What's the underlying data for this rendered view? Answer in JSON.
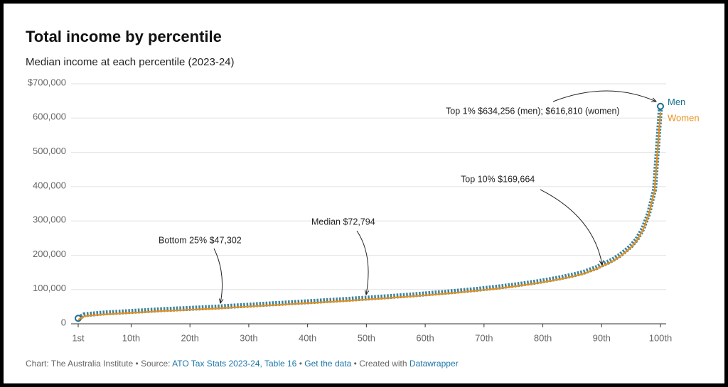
{
  "chart_data": {
    "type": "line",
    "title": "Total income by percentile",
    "subtitle": "Median income at each percentile (2023-24)",
    "x": [
      1,
      2,
      3,
      4,
      5,
      6,
      7,
      8,
      9,
      10,
      11,
      12,
      13,
      14,
      15,
      16,
      17,
      18,
      19,
      20,
      21,
      22,
      23,
      24,
      25,
      26,
      27,
      28,
      29,
      30,
      31,
      32,
      33,
      34,
      35,
      36,
      37,
      38,
      39,
      40,
      41,
      42,
      43,
      44,
      45,
      46,
      47,
      48,
      49,
      50,
      51,
      52,
      53,
      54,
      55,
      56,
      57,
      58,
      59,
      60,
      61,
      62,
      63,
      64,
      65,
      66,
      67,
      68,
      69,
      70,
      71,
      72,
      73,
      74,
      75,
      76,
      77,
      78,
      79,
      80,
      81,
      82,
      83,
      84,
      85,
      86,
      87,
      88,
      89,
      90,
      91,
      92,
      93,
      94,
      95,
      96,
      97,
      98,
      99,
      100
    ],
    "series": [
      {
        "name": "Men",
        "color": "#1b6f8f",
        "values": [
          16000,
          26000,
          28000,
          29500,
          31000,
          32000,
          33000,
          34000,
          35000,
          36000,
          37000,
          38000,
          39000,
          40000,
          41000,
          41800,
          42600,
          43400,
          44200,
          45000,
          45800,
          46600,
          47400,
          48300,
          49300,
          50300,
          51300,
          52300,
          53300,
          54300,
          55300,
          56300,
          57300,
          58300,
          59300,
          60300,
          61300,
          62300,
          63300,
          64300,
          65300,
          66300,
          67300,
          68300,
          69300,
          70400,
          71500,
          72600,
          73700,
          74800,
          76000,
          77200,
          78400,
          79600,
          80800,
          82000,
          83300,
          84600,
          85900,
          87200,
          88600,
          90000,
          91400,
          92900,
          94400,
          96000,
          97600,
          99200,
          100900,
          102700,
          104500,
          106400,
          108400,
          110500,
          112700,
          115000,
          117400,
          119900,
          122500,
          125300,
          128200,
          131300,
          134600,
          138100,
          141900,
          146000,
          150500,
          157000,
          163000,
          171700,
          179000,
          188000,
          199000,
          212000,
          227000,
          247000,
          277000,
          322000,
          392000,
          634256
        ]
      },
      {
        "name": "Women",
        "color": "#e8901a",
        "values": [
          12000,
          22000,
          24000,
          25500,
          27000,
          28000,
          29000,
          30000,
          31000,
          32000,
          33000,
          34000,
          35000,
          36000,
          37000,
          37800,
          38600,
          39400,
          40200,
          41000,
          41800,
          42600,
          43400,
          44300,
          45300,
          46300,
          47300,
          48300,
          49300,
          50300,
          51300,
          52300,
          53300,
          54300,
          55300,
          56300,
          57300,
          58300,
          59300,
          60300,
          61300,
          62300,
          63300,
          64300,
          65300,
          66400,
          67500,
          68600,
          69700,
          70800,
          72000,
          73200,
          74400,
          75600,
          76800,
          78000,
          79300,
          80600,
          81900,
          83200,
          84600,
          86000,
          87400,
          88900,
          90400,
          92000,
          93600,
          95200,
          96900,
          98700,
          100500,
          102400,
          104400,
          106500,
          108700,
          111000,
          113400,
          115900,
          118500,
          121300,
          124200,
          127300,
          130600,
          134100,
          137900,
          142000,
          146500,
          153000,
          159000,
          167700,
          175000,
          184000,
          195000,
          208000,
          223000,
          243000,
          273000,
          318000,
          388000,
          616810
        ]
      }
    ],
    "xlim": [
      1,
      100
    ],
    "xticks": [
      {
        "value": 1,
        "label": "1st"
      },
      {
        "value": 10,
        "label": "10th"
      },
      {
        "value": 20,
        "label": "20th"
      },
      {
        "value": 30,
        "label": "30th"
      },
      {
        "value": 40,
        "label": "40th"
      },
      {
        "value": 50,
        "label": "50th"
      },
      {
        "value": 60,
        "label": "60th"
      },
      {
        "value": 70,
        "label": "70th"
      },
      {
        "value": 80,
        "label": "80th"
      },
      {
        "value": 90,
        "label": "90th"
      },
      {
        "value": 100,
        "label": "100th"
      }
    ],
    "ylim": [
      0,
      700000
    ],
    "yticks": [
      0,
      {
        "value": 100000,
        "label": "100,000"
      },
      {
        "value": 200000,
        "label": "200,000"
      },
      {
        "value": 300000,
        "label": "300,000"
      },
      {
        "value": 400000,
        "label": "400,000"
      },
      {
        "value": 500000,
        "label": "500,000"
      },
      {
        "value": 600000,
        "label": "600,000"
      },
      {
        "value": 700000,
        "label": "$700,000"
      }
    ],
    "grid": true,
    "annotations": [
      "Bottom 25% $47,302",
      "Median $72,794",
      "Top 10% $169,664",
      "Top 1% $634,256 (men); $616,810 (women)"
    ],
    "footer": {
      "credit": "Chart: The Australia Institute",
      "separator": "•",
      "source_label": "Source:",
      "source": "ATO Tax Stats 2023-24, Table 16",
      "get_data": "Get the data",
      "created_with": "Created with",
      "tool": "Datawrapper"
    }
  }
}
